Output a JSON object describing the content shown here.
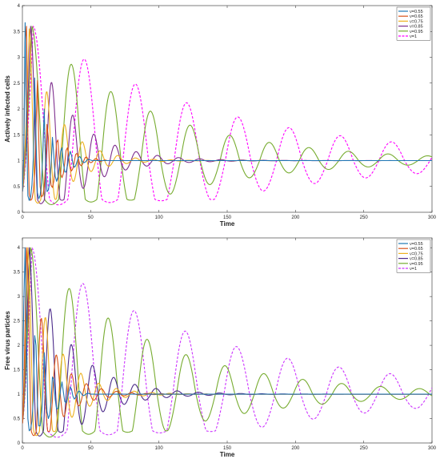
{
  "chart_data": [
    {
      "type": "line",
      "xlabel": "Time",
      "ylabel": "Actively infected cells",
      "xlim": [
        0,
        300
      ],
      "ylim": [
        0,
        4
      ],
      "xticks": [
        0,
        50,
        100,
        150,
        200,
        250,
        300
      ],
      "yticks": [
        0,
        0.5,
        1,
        1.5,
        2,
        2.5,
        3,
        3.5,
        4
      ],
      "grid": false,
      "legend_position": "top-right",
      "x_step": 1,
      "series": [
        {
          "name": "ν=0.55",
          "color": "#1f77b4",
          "style": "solid",
          "values": [
            0.4,
            1.09,
            3.67,
            1.72,
            0.32,
            0.23,
            0.3,
            0.53,
            1.05,
            2.6,
            1.42,
            0.38,
            0.26,
            0.33,
            0.57,
            1.2,
            2.0,
            0.85,
            0.4,
            0.43,
            0.58,
            0.91,
            1.45,
            1.1,
            0.7,
            0.6,
            0.68,
            0.88,
            1.18,
            1.25,
            0.96,
            0.78,
            0.78,
            0.9,
            1.07,
            1.18,
            1.1,
            0.94,
            0.87,
            0.9,
            0.98,
            1.06,
            1.08,
            1.04,
            0.98,
            0.96,
            0.97,
            1.0,
            1.02,
            1.02,
            1.01,
            1.0,
            1.0,
            1.0,
            1.0,
            1.0,
            1.0,
            1.0,
            1.0,
            1.0,
            1.0,
            1.0,
            1.0,
            1.0,
            1.0,
            1.0,
            1.0,
            1.0,
            1.0,
            1.0,
            1.0,
            1.0,
            1.0,
            1.0,
            1.0,
            1.0,
            1.0,
            1.0,
            1.0,
            1.0,
            1.0,
            1.0,
            1.0,
            1.0,
            1.0,
            1.0,
            1.0,
            1.0,
            1.0,
            1.0,
            1.0,
            1.0,
            1.0,
            1.0,
            1.0,
            1.0,
            1.0,
            1.0,
            1.0,
            1.0,
            1.0,
            1.0,
            1.0,
            1.0,
            1.0,
            1.0,
            1.0,
            1.0,
            1.0,
            1.0,
            1.0,
            1.0,
            1.0,
            1.0,
            1.0,
            1.0,
            1.0,
            1.0,
            1.0,
            1.0,
            1.0,
            1.0,
            1.0,
            1.0,
            1.0,
            1.0,
            1.0,
            1.0,
            1.0,
            1.0,
            1.0,
            1.0,
            1.0,
            1.0,
            1.0,
            1.0,
            1.0,
            1.0,
            1.0,
            1.0,
            1.0,
            1.0,
            1.0,
            1.0,
            1.0,
            1.0,
            1.0,
            1.0,
            1.0,
            1.0,
            1.0,
            1.0,
            1.0,
            1.0,
            1.0,
            1.0,
            1.0,
            1.0,
            1.0,
            1.0,
            1.0,
            1.0,
            1.0,
            1.0,
            1.0,
            1.0,
            1.0,
            1.0,
            1.0,
            1.0,
            1.0,
            1.0,
            1.0,
            1.0,
            1.0,
            1.0,
            1.0,
            1.0,
            1.0,
            1.0,
            1.0,
            1.0,
            1.0,
            1.0,
            1.0,
            1.0,
            1.0,
            1.0,
            1.0,
            1.0,
            1.0,
            1.0,
            1.0,
            1.0,
            1.0,
            1.0,
            1.0,
            1.0,
            1.0,
            1.0,
            1.0,
            1.0,
            1.0,
            1.0,
            1.0,
            1.0,
            1.0,
            1.0,
            1.0,
            1.0,
            1.0,
            1.0,
            1.0,
            1.0,
            1.0,
            1.0,
            1.0,
            1.0,
            1.0,
            1.0,
            1.0,
            1.0,
            1.0,
            1.0,
            1.0,
            1.0,
            1.0,
            1.0,
            1.0,
            1.0,
            1.0,
            1.0,
            1.0,
            1.0,
            1.0,
            1.0,
            1.0,
            1.0,
            1.0,
            1.0,
            1.0,
            1.0,
            1.0,
            1.0,
            1.0,
            1.0,
            1.0,
            1.0,
            1.0,
            1.0,
            1.0,
            1.0,
            1.0,
            1.0,
            1.0,
            1.0,
            1.0,
            1.0,
            1.0,
            1.0,
            1.0,
            1.0,
            1.0,
            1.0,
            1.0,
            1.0,
            1.0,
            1.0,
            1.0,
            1.0,
            1.0,
            1.0,
            1.0,
            1.0,
            1.0,
            1.0,
            1.0,
            1.0,
            1.0,
            1.0,
            1.0,
            1.0,
            1.0,
            1.0,
            1.0,
            1.0,
            1.0,
            1.0,
            1.0,
            1.0,
            1.0,
            1.0,
            1.0,
            1.0,
            1.0,
            1.0,
            1.0,
            1.0,
            1.0,
            1.0,
            1.0,
            1.0,
            1.0,
            1.0,
            1.0,
            1.0,
            1.0,
            1.0,
            1.0,
            1.0,
            1.0,
            1.0,
            1.0,
            1.0,
            1.0,
            1.0,
            1.0
          ]
        },
        {
          "name": "ν=0.65",
          "color": "#d95319",
          "style": "solid",
          "values": [
            0.4,
            1.0,
            3.3,
            3.6,
            1.5,
            0.35,
            0.23,
            0.26,
            0.4,
            0.75,
            1.7,
            2.55,
            1.4,
            0.5,
            0.3,
            0.33,
            0.5,
            0.95,
            1.7,
            1.45,
            0.8,
            0.52,
            0.48,
            0.6,
            0.9,
            1.35,
            1.4,
            1.02,
            0.74,
            0.67,
            0.75,
            0.95,
            1.2,
            1.25,
            1.05,
            0.86,
            0.8,
            0.85,
            0.98,
            1.12,
            1.14,
            1.04,
            0.93,
            0.9,
            0.93,
            1.0,
            1.06,
            1.07,
            1.03,
            0.98,
            0.96,
            0.97,
            1.0,
            1.03,
            1.04,
            1.02,
            0.99,
            0.98,
            0.99,
            1.0,
            1.01,
            1.01,
            1.0,
            1.0,
            1.0,
            1.0,
            1.0,
            1.0,
            1.0,
            1.0,
            1.0,
            1.0,
            1.0,
            1.0,
            1.0,
            1.0,
            1.0,
            1.0,
            1.0,
            1.0,
            1.0,
            1.0,
            1.0,
            1.0,
            1.0,
            1.0,
            1.0,
            1.0,
            1.0,
            1.0,
            1.0,
            1.0,
            1.0,
            1.0,
            1.0,
            1.0,
            1.0,
            1.0,
            1.0,
            1.0,
            1.0,
            1.0,
            1.0,
            1.0,
            1.0,
            1.0,
            1.0,
            1.0,
            1.0,
            1.0,
            1.0,
            1.0,
            1.0,
            1.0,
            1.0,
            1.0,
            1.0,
            1.0,
            1.0,
            1.0,
            1.0,
            1.0,
            1.0,
            1.0,
            1.0,
            1.0,
            1.0,
            1.0,
            1.0,
            1.0,
            1.0,
            1.0,
            1.0,
            1.0,
            1.0,
            1.0,
            1.0,
            1.0,
            1.0,
            1.0,
            1.0,
            1.0,
            1.0,
            1.0,
            1.0,
            1.0,
            1.0,
            1.0,
            1.0,
            1.0,
            1.0,
            1.0,
            1.0,
            1.0,
            1.0,
            1.0,
            1.0,
            1.0,
            1.0,
            1.0,
            1.0,
            1.0,
            1.0,
            1.0,
            1.0,
            1.0,
            1.0,
            1.0,
            1.0,
            1.0,
            1.0,
            1.0,
            1.0,
            1.0,
            1.0,
            1.0,
            1.0,
            1.0,
            1.0,
            1.0,
            1.0,
            1.0,
            1.0,
            1.0,
            1.0,
            1.0,
            1.0,
            1.0,
            1.0,
            1.0,
            1.0,
            1.0,
            1.0,
            1.0,
            1.0,
            1.0,
            1.0,
            1.0,
            1.0,
            1.0,
            1.0,
            1.0,
            1.0,
            1.0,
            1.0,
            1.0,
            1.0,
            1.0,
            1.0,
            1.0,
            1.0,
            1.0,
            1.0,
            1.0,
            1.0,
            1.0,
            1.0,
            1.0,
            1.0,
            1.0,
            1.0,
            1.0,
            1.0,
            1.0,
            1.0,
            1.0,
            1.0,
            1.0,
            1.0,
            1.0,
            1.0,
            1.0,
            1.0,
            1.0,
            1.0,
            1.0,
            1.0,
            1.0,
            1.0,
            1.0,
            1.0,
            1.0,
            1.0,
            1.0,
            1.0,
            1.0,
            1.0,
            1.0,
            1.0,
            1.0,
            1.0,
            1.0,
            1.0,
            1.0,
            1.0,
            1.0,
            1.0,
            1.0,
            1.0,
            1.0,
            1.0,
            1.0,
            1.0,
            1.0,
            1.0,
            1.0,
            1.0,
            1.0,
            1.0,
            1.0,
            1.0,
            1.0,
            1.0,
            1.0,
            1.0,
            1.0,
            1.0,
            1.0,
            1.0,
            1.0,
            1.0,
            1.0,
            1.0,
            1.0,
            1.0,
            1.0,
            1.0,
            1.0,
            1.0,
            1.0,
            1.0,
            1.0,
            1.0,
            1.0,
            1.0,
            1.0,
            1.0,
            1.0,
            1.0,
            1.0,
            1.0,
            1.0,
            1.0,
            1.0,
            1.0,
            1.0
          ]
        }
      ],
      "oscillators": [
        {
          "name": "ν=0.75",
          "color": "#edb120",
          "style": "solid",
          "peak1_x": 5,
          "peak1_y": 3.55,
          "period": 13,
          "decay": 0.05,
          "min_y": 0.25
        },
        {
          "name": "ν=0.85",
          "color": "#7e2f8e",
          "style": "solid",
          "peak1_x": 6,
          "peak1_y": 3.6,
          "period": 15.5,
          "decay": 0.035,
          "min_y": 0.25
        },
        {
          "name": "ν=0.95",
          "color": "#77ac30",
          "style": "solid",
          "peak1_x": 7,
          "peak1_y": 3.6,
          "period": 29,
          "decay": 0.0115,
          "min_y": 0.25
        },
        {
          "name": "ν=1",
          "color": "#ff00ff",
          "style": "dashed",
          "peak1_x": 8,
          "peak1_y": 3.6,
          "period": 37.5,
          "decay": 0.0075,
          "min_y": 0.25
        }
      ]
    },
    {
      "type": "line",
      "xlabel": "Time",
      "ylabel": "Free virus particles",
      "xlim": [
        0,
        300
      ],
      "ylim": [
        0,
        4.2
      ],
      "xticks": [
        0,
        50,
        100,
        150,
        200,
        250,
        300
      ],
      "yticks": [
        0,
        0.5,
        1,
        1.5,
        2,
        2.5,
        3,
        3.5,
        4
      ],
      "grid": false,
      "legend_position": "top-right",
      "x_step": 1,
      "series": [
        {
          "name": "ν=0.55",
          "color": "#1f77b4",
          "style": "solid",
          "values": [
            1.0,
            2.8,
            4.0,
            2.4,
            0.5,
            0.25,
            0.28,
            0.45,
            0.9,
            2.2,
            2.0,
            0.8,
            0.35,
            0.35,
            0.55,
            1.05,
            1.85,
            1.3,
            0.65,
            0.5,
            0.58,
            0.85,
            1.35,
            1.3,
            0.9,
            0.7,
            0.7,
            0.85,
            1.1,
            1.25,
            1.05,
            0.85,
            0.82,
            0.9,
            1.05,
            1.15,
            1.1,
            0.96,
            0.9,
            0.93,
            1.0,
            1.06,
            1.06,
            1.02,
            0.98,
            0.97,
            0.99,
            1.01,
            1.02,
            1.01,
            1.0,
            1.0,
            1.0,
            1.0,
            1.0,
            1.0,
            1.0,
            1.0,
            1.0,
            1.0,
            1.0,
            1.0,
            1.0,
            1.0,
            1.0,
            1.0,
            1.0,
            1.0,
            1.0,
            1.0,
            1.0,
            1.0,
            1.0,
            1.0,
            1.0,
            1.0,
            1.0,
            1.0,
            1.0,
            1.0,
            1.0,
            1.0,
            1.0,
            1.0,
            1.0,
            1.0,
            1.0,
            1.0,
            1.0,
            1.0,
            1.0,
            1.0,
            1.0,
            1.0,
            1.0,
            1.0,
            1.0,
            1.0,
            1.0,
            1.0,
            1.0,
            1.0,
            1.0,
            1.0,
            1.0,
            1.0,
            1.0,
            1.0,
            1.0,
            1.0,
            1.0,
            1.0,
            1.0,
            1.0,
            1.0,
            1.0,
            1.0,
            1.0,
            1.0,
            1.0,
            1.0,
            1.0,
            1.0,
            1.0,
            1.0,
            1.0,
            1.0,
            1.0,
            1.0,
            1.0,
            1.0,
            1.0,
            1.0,
            1.0,
            1.0,
            1.0,
            1.0,
            1.0,
            1.0,
            1.0,
            1.0,
            1.0,
            1.0,
            1.0,
            1.0,
            1.0,
            1.0,
            1.0,
            1.0,
            1.0,
            1.0,
            1.0,
            1.0,
            1.0,
            1.0,
            1.0,
            1.0,
            1.0,
            1.0,
            1.0,
            1.0,
            1.0,
            1.0,
            1.0,
            1.0,
            1.0,
            1.0,
            1.0,
            1.0,
            1.0,
            1.0,
            1.0,
            1.0,
            1.0,
            1.0,
            1.0,
            1.0,
            1.0,
            1.0,
            1.0,
            1.0,
            1.0,
            1.0,
            1.0,
            1.0,
            1.0,
            1.0,
            1.0,
            1.0,
            1.0,
            1.0,
            1.0,
            1.0,
            1.0,
            1.0,
            1.0,
            1.0,
            1.0,
            1.0,
            1.0,
            1.0,
            1.0,
            1.0,
            1.0,
            1.0,
            1.0,
            1.0,
            1.0,
            1.0,
            1.0,
            1.0,
            1.0,
            1.0,
            1.0,
            1.0,
            1.0,
            1.0,
            1.0,
            1.0,
            1.0,
            1.0,
            1.0,
            1.0,
            1.0,
            1.0,
            1.0,
            1.0,
            1.0,
            1.0,
            1.0,
            1.0,
            1.0,
            1.0,
            1.0,
            1.0,
            1.0,
            1.0,
            1.0,
            1.0,
            1.0,
            1.0,
            1.0,
            1.0,
            1.0,
            1.0,
            1.0,
            1.0,
            1.0,
            1.0,
            1.0,
            1.0,
            1.0,
            1.0,
            1.0,
            1.0,
            1.0,
            1.0,
            1.0,
            1.0,
            1.0,
            1.0,
            1.0,
            1.0,
            1.0,
            1.0,
            1.0,
            1.0,
            1.0,
            1.0,
            1.0,
            1.0,
            1.0,
            1.0,
            1.0,
            1.0,
            1.0,
            1.0,
            1.0,
            1.0,
            1.0,
            1.0,
            1.0,
            1.0,
            1.0,
            1.0,
            1.0,
            1.0,
            1.0,
            1.0,
            1.0,
            1.0,
            1.0,
            1.0,
            1.0,
            1.0,
            1.0,
            1.0,
            1.0,
            1.0,
            1.0,
            1.0,
            1.0,
            1.0,
            1.0,
            1.0
          ]
        }
      ],
      "oscillators": [
        {
          "name": "ν=0.65",
          "color": "#d95319",
          "style": "solid",
          "peak1_x": 3,
          "peak1_y": 4.0,
          "period": 11,
          "decay": 0.06,
          "min_y": 0.25
        },
        {
          "name": "ν=0.75",
          "color": "#edb120",
          "style": "solid",
          "peak1_x": 4,
          "peak1_y": 4.0,
          "period": 13,
          "decay": 0.05,
          "min_y": 0.25
        },
        {
          "name": "ν=0.85",
          "color": "#4b2a8a",
          "style": "solid",
          "peak1_x": 5,
          "peak1_y": 4.0,
          "period": 15.5,
          "decay": 0.035,
          "min_y": 0.25
        },
        {
          "name": "ν=0.95",
          "color": "#77ac30",
          "style": "solid",
          "peak1_x": 6,
          "peak1_y": 4.0,
          "period": 28.5,
          "decay": 0.0115,
          "min_y": 0.25
        },
        {
          "name": "ν=1",
          "color": "#cc33ff",
          "style": "dashed",
          "peak1_x": 7,
          "peak1_y": 4.0,
          "period": 37.5,
          "decay": 0.0075,
          "min_y": 0.25
        }
      ]
    }
  ]
}
